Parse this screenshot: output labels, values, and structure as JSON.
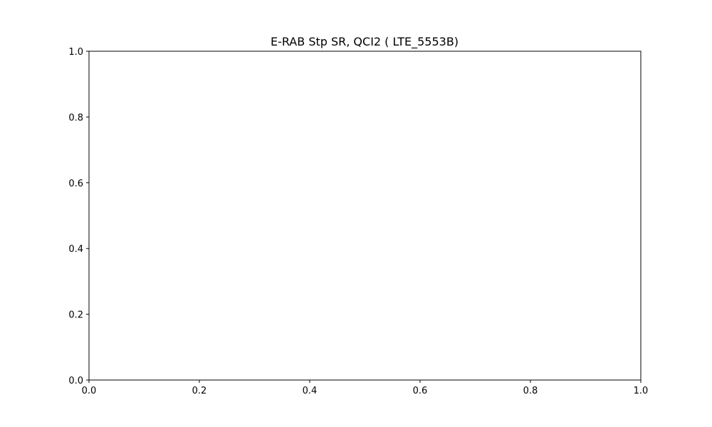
{
  "chart_data": {
    "type": "line",
    "title": "E-RAB Stp SR, QCI2 ( LTE_5553B)",
    "xlabel": "",
    "ylabel": "",
    "xlim": [
      0.0,
      1.0
    ],
    "ylim": [
      0.0,
      1.0
    ],
    "series": [],
    "x_ticks": [
      "0.0",
      "0.2",
      "0.4",
      "0.6",
      "0.8",
      "1.0"
    ],
    "y_ticks": [
      "0.0",
      "0.2",
      "0.4",
      "0.6",
      "0.8",
      "1.0"
    ],
    "grid": false,
    "legend": "none"
  }
}
